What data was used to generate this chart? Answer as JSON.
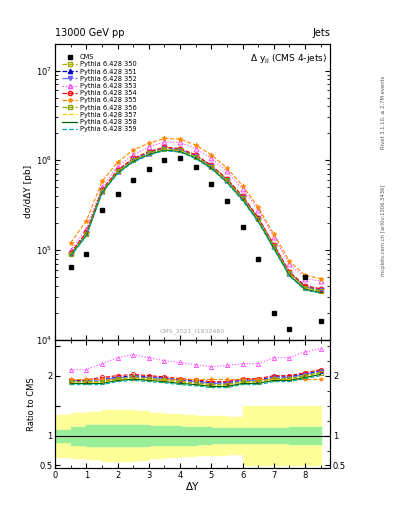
{
  "title_top": "13000 GeV pp",
  "title_right": "Jets",
  "ylabel_main": "dσ/dΔY [pb]",
  "ylabel_ratio": "Ratio to CMS",
  "xlabel": "ΔY",
  "watermark": "CMS_2021_I1932460",
  "right_label_top": "Rivet 3.1.10, ≥ 2.7M events",
  "right_label_bot": "mcplots.cern.ch [arXiv:1306.3436]",
  "cms_x": [
    0.5,
    1.0,
    1.5,
    2.0,
    2.5,
    3.0,
    3.5,
    4.0,
    4.5,
    5.0,
    5.5,
    6.0,
    6.5,
    7.0,
    7.5,
    8.0,
    8.5
  ],
  "cms_y": [
    65000.0,
    90000.0,
    280000.0,
    420000.0,
    600000.0,
    800000.0,
    1000000.0,
    1050000.0,
    850000.0,
    550000.0,
    350000.0,
    180000.0,
    80000.0,
    20000.0,
    13000.0,
    50000.0,
    16000.0
  ],
  "x_vals": [
    0.5,
    1.0,
    1.5,
    2.0,
    2.5,
    3.0,
    3.5,
    4.0,
    4.5,
    5.0,
    5.5,
    6.0,
    6.5,
    7.0,
    7.5,
    8.0,
    8.5
  ],
  "pythia_350_y": [
    90000.0,
    150000.0,
    450000.0,
    750000.0,
    1000000.0,
    1200000.0,
    1350000.0,
    1300000.0,
    1100000.0,
    850000.0,
    600000.0,
    380000.0,
    220000.0,
    110000.0,
    55000.0,
    38000.0,
    35000.0
  ],
  "pythia_351_y": [
    92000.0,
    155000.0,
    460000.0,
    760000.0,
    1020000.0,
    1220000.0,
    1370000.0,
    1320000.0,
    1120000.0,
    860000.0,
    610000.0,
    390000.0,
    225000.0,
    112000.0,
    56000.0,
    39000.0,
    36000.0
  ],
  "pythia_352_y": [
    91000.0,
    152000.0,
    455000.0,
    755000.0,
    1010000.0,
    1210000.0,
    1360000.0,
    1310000.0,
    1110000.0,
    855000.0,
    605000.0,
    385000.0,
    222000.0,
    111000.0,
    55500.0,
    38500.0,
    35500.0
  ],
  "pythia_353_y": [
    100000.0,
    170000.0,
    500000.0,
    850000.0,
    1150000.0,
    1400000.0,
    1600000.0,
    1580000.0,
    1350000.0,
    1050000.0,
    750000.0,
    480000.0,
    280000.0,
    140000.0,
    70000.0,
    48000.0,
    45000.0
  ],
  "pythia_354_y": [
    93000.0,
    157000.0,
    465000.0,
    780000.0,
    1050000.0,
    1250000.0,
    1400000.0,
    1350000.0,
    1150000.0,
    880000.0,
    620000.0,
    400000.0,
    230000.0,
    115000.0,
    57000.0,
    40000.0,
    37000.0
  ],
  "pythia_355_y": [
    120000.0,
    210000.0,
    580000.0,
    950000.0,
    1300000.0,
    1550000.0,
    1750000.0,
    1720000.0,
    1480000.0,
    1150000.0,
    820000.0,
    520000.0,
    300000.0,
    150000.0,
    75000.0,
    52000.0,
    48000.0
  ],
  "pythia_356_y": [
    90000.0,
    150000.0,
    450000.0,
    750000.0,
    1000000.0,
    1200000.0,
    1350000.0,
    1300000.0,
    1100000.0,
    850000.0,
    600000.0,
    380000.0,
    220000.0,
    110000.0,
    55000.0,
    38000.0,
    35000.0
  ],
  "pythia_357_y": [
    88000.0,
    147000.0,
    440000.0,
    730000.0,
    980000.0,
    1170000.0,
    1320000.0,
    1270000.0,
    1070000.0,
    830000.0,
    580000.0,
    370000.0,
    215000.0,
    107000.0,
    53000.0,
    37000.0,
    34000.0
  ],
  "pythia_358_y": [
    87000.0,
    145000.0,
    435000.0,
    720000.0,
    970000.0,
    1160000.0,
    1300000.0,
    1250000.0,
    1060000.0,
    820000.0,
    570000.0,
    365000.0,
    210000.0,
    105000.0,
    52000.0,
    36500.0,
    33500.0
  ],
  "pythia_359_y": [
    85000.0,
    143000.0,
    428000.0,
    710000.0,
    950000.0,
    1140000.0,
    1280000.0,
    1230000.0,
    1040000.0,
    800000.0,
    560000.0,
    355000.0,
    205000.0,
    102000.0,
    51000.0,
    35500.0,
    33000.0
  ],
  "series": [
    {
      "label": "Pythia 6.428 350",
      "color": "#aaaa00",
      "linestyle": "--",
      "marker": "s",
      "marker_fc": "none"
    },
    {
      "label": "Pythia 6.428 351",
      "color": "#0000cc",
      "linestyle": "--",
      "marker": "^",
      "marker_fc": "#0000cc"
    },
    {
      "label": "Pythia 6.428 352",
      "color": "#6666ff",
      "linestyle": "-.",
      "marker": "v",
      "marker_fc": "#6666ff"
    },
    {
      "label": "Pythia 6.428 353",
      "color": "#ff44ff",
      "linestyle": ":",
      "marker": "^",
      "marker_fc": "none"
    },
    {
      "label": "Pythia 6.428 354",
      "color": "#ff0000",
      "linestyle": "--",
      "marker": "o",
      "marker_fc": "none"
    },
    {
      "label": "Pythia 6.428 355",
      "color": "#ff8800",
      "linestyle": "--",
      "marker": "*",
      "marker_fc": "#ff8800"
    },
    {
      "label": "Pythia 6.428 356",
      "color": "#88aa00",
      "linestyle": "--",
      "marker": "s",
      "marker_fc": "none"
    },
    {
      "label": "Pythia 6.428 357",
      "color": "#ffcc00",
      "linestyle": "--",
      "marker": "None",
      "marker_fc": "none"
    },
    {
      "label": "Pythia 6.428 358",
      "color": "#006600",
      "linestyle": "-",
      "marker": "None",
      "marker_fc": "none"
    },
    {
      "label": "Pythia 6.428 359",
      "color": "#00aaaa",
      "linestyle": "--",
      "marker": "None",
      "marker_fc": "none"
    }
  ],
  "ratio_350": [
    1.9,
    1.9,
    1.9,
    1.95,
    1.97,
    1.95,
    1.93,
    1.9,
    1.88,
    1.85,
    1.85,
    1.9,
    1.9,
    1.95,
    1.95,
    2.0,
    2.05
  ],
  "ratio_351": [
    1.92,
    1.92,
    1.95,
    1.97,
    2.0,
    1.98,
    1.96,
    1.93,
    1.91,
    1.88,
    1.88,
    1.93,
    1.93,
    1.98,
    1.98,
    2.03,
    2.08
  ],
  "ratio_352": [
    1.91,
    1.91,
    1.93,
    1.96,
    1.98,
    1.97,
    1.95,
    1.92,
    1.9,
    1.87,
    1.87,
    1.92,
    1.92,
    1.97,
    1.97,
    2.02,
    2.07
  ],
  "ratio_353": [
    2.1,
    2.1,
    2.2,
    2.3,
    2.35,
    2.3,
    2.25,
    2.22,
    2.18,
    2.15,
    2.17,
    2.2,
    2.2,
    2.3,
    2.3,
    2.4,
    2.45
  ],
  "ratio_354": [
    1.93,
    1.93,
    1.97,
    2.0,
    2.02,
    2.0,
    1.98,
    1.95,
    1.93,
    1.9,
    1.9,
    1.95,
    1.95,
    2.0,
    2.0,
    2.05,
    2.1
  ],
  "ratio_355": [
    1.95,
    1.95,
    1.95,
    1.95,
    1.95,
    1.95,
    1.95,
    1.95,
    1.95,
    1.95,
    1.95,
    1.95,
    1.95,
    1.95,
    1.95,
    1.95,
    1.95
  ],
  "ratio_356": [
    1.9,
    1.9,
    1.9,
    1.95,
    1.97,
    1.95,
    1.93,
    1.9,
    1.88,
    1.85,
    1.85,
    1.9,
    1.9,
    1.95,
    1.95,
    2.0,
    2.05
  ],
  "ratio_357": [
    1.88,
    1.88,
    1.88,
    1.93,
    1.95,
    1.93,
    1.91,
    1.88,
    1.86,
    1.83,
    1.83,
    1.88,
    1.88,
    1.93,
    1.93,
    1.98,
    2.03
  ],
  "ratio_358": [
    1.87,
    1.87,
    1.87,
    1.92,
    1.94,
    1.92,
    1.9,
    1.87,
    1.85,
    1.82,
    1.82,
    1.87,
    1.87,
    1.92,
    1.92,
    1.97,
    2.02
  ],
  "ratio_359": [
    1.85,
    1.85,
    1.85,
    1.9,
    1.92,
    1.9,
    1.88,
    1.85,
    1.83,
    1.8,
    1.8,
    1.85,
    1.85,
    1.9,
    1.9,
    1.95,
    2.0
  ],
  "green_band_edges": [
    0.0,
    0.5,
    1.0,
    1.5,
    2.0,
    2.5,
    3.0,
    3.5,
    4.0,
    4.5,
    5.0,
    5.5,
    6.0,
    6.5,
    7.0,
    7.5,
    8.5
  ],
  "green_lo": [
    0.9,
    0.85,
    0.82,
    0.82,
    0.82,
    0.83,
    0.84,
    0.84,
    0.85,
    0.86,
    0.87,
    0.88,
    0.88,
    0.87,
    0.87,
    0.86
  ],
  "green_hi": [
    1.1,
    1.15,
    1.18,
    1.18,
    1.18,
    1.17,
    1.16,
    1.16,
    1.15,
    1.14,
    1.13,
    1.12,
    1.12,
    1.13,
    1.13,
    1.14
  ],
  "yellow_band_edges": [
    0.0,
    0.5,
    1.0,
    1.5,
    2.0,
    2.5,
    3.0,
    3.5,
    4.0,
    4.5,
    5.0,
    5.5,
    6.0,
    6.5,
    7.0,
    7.5,
    8.5
  ],
  "yellow_lo": [
    0.65,
    0.62,
    0.6,
    0.58,
    0.58,
    0.59,
    0.62,
    0.64,
    0.66,
    0.67,
    0.68,
    0.69,
    0.5,
    0.5,
    0.5,
    0.5
  ],
  "yellow_hi": [
    1.35,
    1.38,
    1.4,
    1.42,
    1.42,
    1.41,
    1.38,
    1.36,
    1.34,
    1.33,
    1.32,
    1.31,
    1.5,
    1.5,
    1.5,
    1.5
  ],
  "ylim_main": [
    10000.0,
    20000000.0
  ],
  "ylim_ratio": [
    0.45,
    2.6
  ],
  "xlim": [
    0.0,
    8.8
  ]
}
